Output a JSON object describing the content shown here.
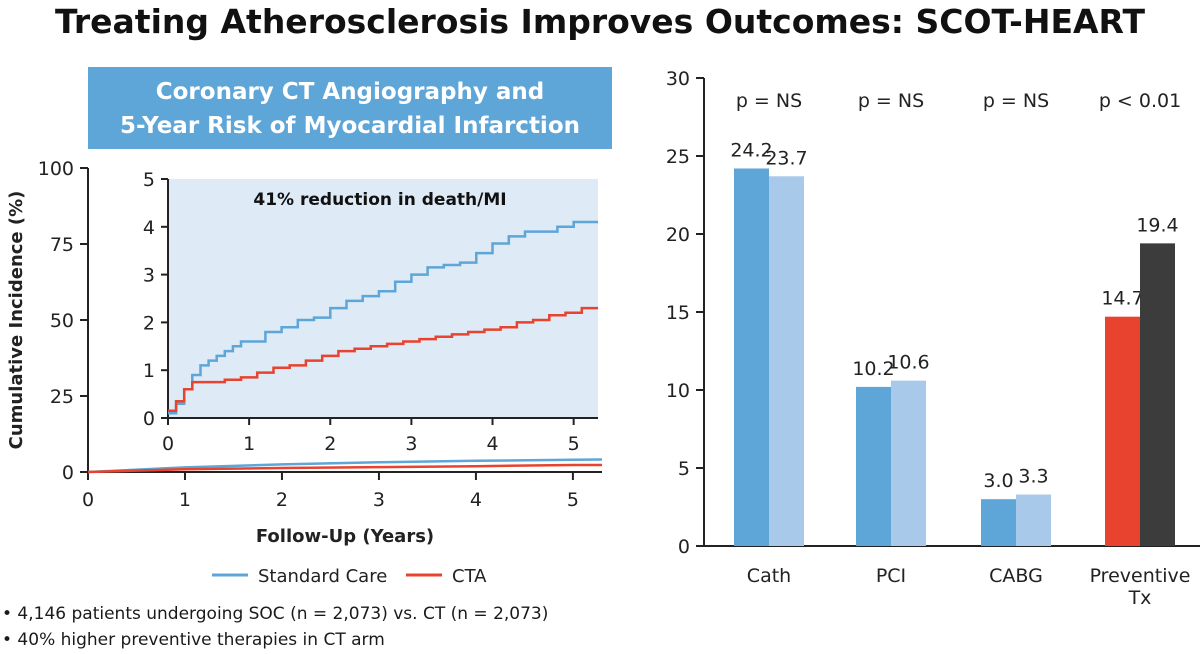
{
  "title": "Treating Atherosclerosis Improves Outcomes: SCOT-HEART",
  "panel_title_lines": [
    "Coronary CT Angiography and",
    "5-Year Risk of Myocardial Infarction"
  ],
  "notes": [
    "• 4,146 patients undergoing SOC (n = 2,073) vs. CT (n = 2,073)",
    "• 40% higher preventive therapies in CT arm"
  ],
  "colors": {
    "standard_care": "#5ea5d8",
    "cta": "#e8432e",
    "bar_blue_dark": "#5ea5d8",
    "bar_blue_light": "#a9c9ea",
    "bar_red": "#e8432e",
    "bar_dark": "#3c3c3c",
    "inset_bg": "#deeaf6"
  },
  "chart_data": [
    {
      "type": "line",
      "xlabel": "Follow-Up (Years)",
      "ylabel": "Cumulative Incidence (%)",
      "xlim": [
        0,
        5.3
      ],
      "ylim": [
        0,
        100
      ],
      "x_ticks": [
        0,
        1,
        2,
        3,
        4,
        5
      ],
      "y_ticks": [
        0,
        25,
        50,
        75,
        100
      ],
      "legend": {
        "placement": "bottom",
        "entries": [
          "Standard Care",
          "CTA"
        ]
      },
      "series": [
        {
          "name": "Standard Care",
          "x": [
            0,
            1,
            2,
            3,
            4,
            5,
            5.3
          ],
          "y": [
            0,
            1.5,
            2.5,
            3.2,
            3.7,
            4.0,
            4.1
          ]
        },
        {
          "name": "CTA",
          "x": [
            0,
            1,
            2,
            3,
            4,
            5,
            5.3
          ],
          "y": [
            0,
            0.9,
            1.3,
            1.6,
            1.9,
            2.3,
            2.3
          ]
        }
      ]
    },
    {
      "type": "line",
      "annotation": "41% reduction in death/MI",
      "xlim": [
        0,
        5.3
      ],
      "ylim": [
        0,
        5
      ],
      "x_ticks": [
        0,
        1,
        2,
        3,
        4,
        5
      ],
      "y_ticks": [
        0,
        1,
        2,
        3,
        4,
        5
      ],
      "series": [
        {
          "name": "Standard Care",
          "x": [
            0,
            0.1,
            0.2,
            0.3,
            0.4,
            0.5,
            0.6,
            0.7,
            0.8,
            0.9,
            1.0,
            1.2,
            1.4,
            1.6,
            1.8,
            2.0,
            2.2,
            2.4,
            2.6,
            2.8,
            3.0,
            3.2,
            3.4,
            3.6,
            3.8,
            4.0,
            4.2,
            4.4,
            4.6,
            4.8,
            5.0,
            5.3
          ],
          "y": [
            0.1,
            0.3,
            0.6,
            0.9,
            1.1,
            1.2,
            1.3,
            1.4,
            1.5,
            1.6,
            1.6,
            1.8,
            1.9,
            2.05,
            2.1,
            2.3,
            2.45,
            2.55,
            2.65,
            2.85,
            3.0,
            3.15,
            3.2,
            3.25,
            3.45,
            3.65,
            3.8,
            3.9,
            3.9,
            4.0,
            4.1,
            4.1
          ]
        },
        {
          "name": "CTA",
          "x": [
            0,
            0.1,
            0.2,
            0.3,
            0.5,
            0.7,
            0.9,
            1.1,
            1.3,
            1.5,
            1.7,
            1.9,
            2.1,
            2.3,
            2.5,
            2.7,
            2.9,
            3.1,
            3.3,
            3.5,
            3.7,
            3.9,
            4.1,
            4.3,
            4.5,
            4.7,
            4.9,
            5.1,
            5.3
          ],
          "y": [
            0.15,
            0.35,
            0.6,
            0.75,
            0.75,
            0.8,
            0.85,
            0.95,
            1.05,
            1.1,
            1.2,
            1.3,
            1.4,
            1.45,
            1.5,
            1.55,
            1.6,
            1.65,
            1.7,
            1.75,
            1.8,
            1.85,
            1.9,
            2.0,
            2.05,
            2.15,
            2.2,
            2.3,
            2.3
          ]
        }
      ]
    },
    {
      "type": "bar",
      "ylim": [
        0,
        30
      ],
      "y_ticks": [
        0,
        5,
        10,
        15,
        20,
        25,
        30
      ],
      "categories": [
        "Cath",
        "PCI",
        "CABG",
        "Preventive\nTx"
      ],
      "p_values": [
        "p = NS",
        "p = NS",
        "p = NS",
        "p < 0.01"
      ],
      "series": [
        {
          "values": [
            24.2,
            10.2,
            3.0,
            14.7
          ],
          "value_labels": [
            "24.2",
            "10.2",
            "3.0",
            "14.7"
          ]
        },
        {
          "values": [
            23.7,
            10.6,
            3.3,
            19.4
          ],
          "value_labels": [
            "23.7",
            "10.6",
            "3.3",
            "19.4"
          ]
        }
      ]
    }
  ]
}
